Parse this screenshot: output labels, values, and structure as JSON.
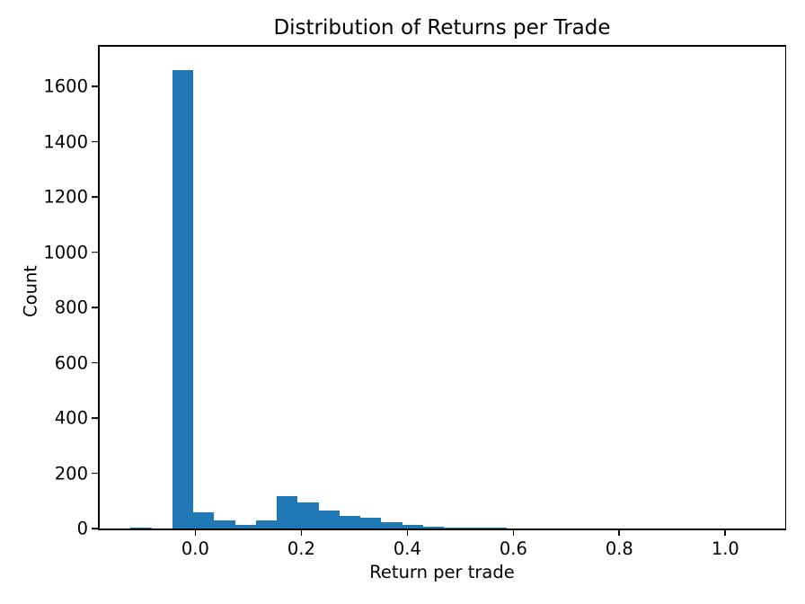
{
  "figure": {
    "title": "Distribution of Returns per Trade",
    "xlabel": "Return per trade",
    "ylabel": "Count"
  },
  "chart_data": {
    "type": "histogram",
    "title": "Distribution of Returns per Trade",
    "xlabel": "Return per trade",
    "ylabel": "Count",
    "bar_color": "#1f77b4",
    "background_color": "#ffffff",
    "grid": false,
    "legend": null,
    "bin_start": -0.122,
    "bin_width": 0.0394,
    "counts": [
      3,
      1,
      1660,
      57,
      28,
      14,
      30,
      116,
      94,
      66,
      45,
      39,
      24,
      13,
      7,
      3,
      3,
      2,
      1,
      1,
      1,
      0,
      0,
      0,
      0,
      0,
      0,
      0,
      0,
      1
    ],
    "x_ticks": [
      0.0,
      0.2,
      0.4,
      0.6,
      0.8,
      1.0
    ],
    "x_tick_labels": [
      "0.0",
      "0.2",
      "0.4",
      "0.6",
      "0.8",
      "1.0"
    ],
    "y_ticks": [
      0,
      200,
      400,
      600,
      800,
      1000,
      1200,
      1400,
      1600
    ],
    "xlim": [
      -0.182,
      1.113
    ],
    "ylim": [
      0,
      1747
    ]
  }
}
